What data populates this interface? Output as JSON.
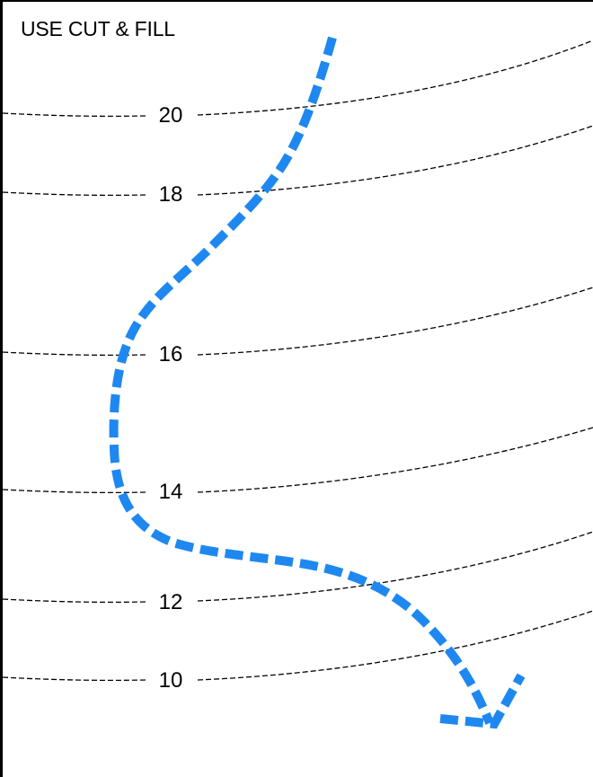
{
  "title": "USE CUT & FILL",
  "colors": {
    "path": "#1e88f0",
    "contour": "#000000"
  },
  "contours": [
    {
      "label": "20"
    },
    {
      "label": "18"
    },
    {
      "label": "16"
    },
    {
      "label": "14"
    },
    {
      "label": "12"
    },
    {
      "label": "10"
    }
  ],
  "path_icon": "dashed-blue-arrow-icon"
}
